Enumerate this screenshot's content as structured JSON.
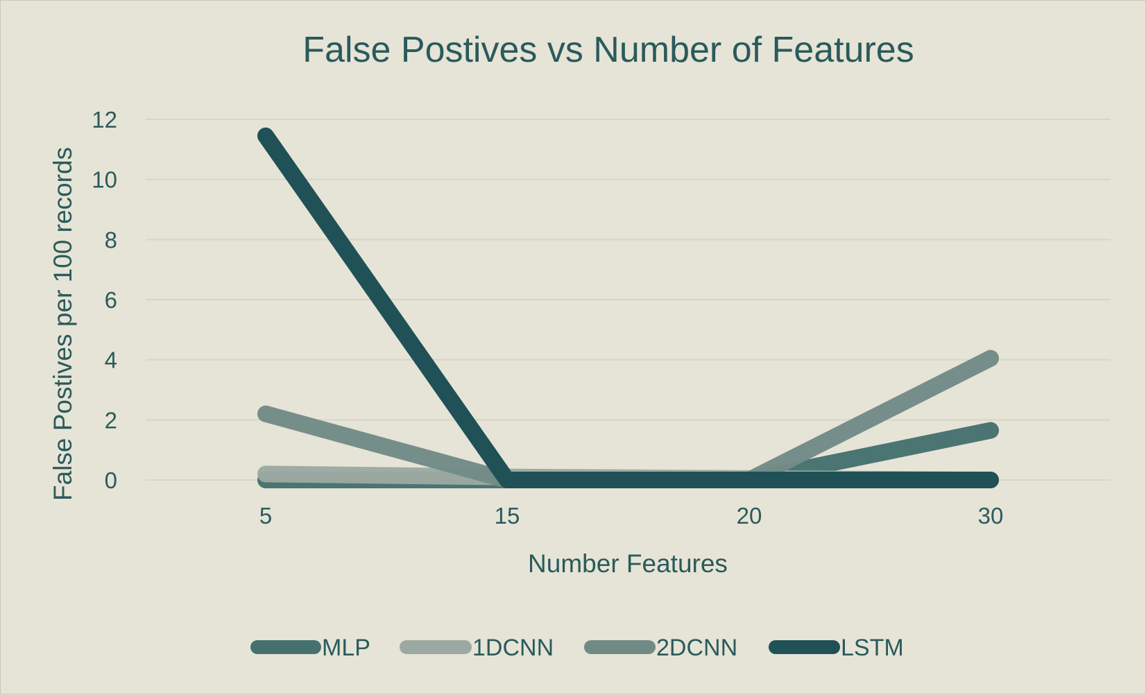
{
  "chart_data": {
    "type": "line",
    "title": "False Postives vs Number of Features",
    "xlabel": "Number Features",
    "ylabel": "False Postives per 100 records",
    "categories": [
      "5",
      "15",
      "20",
      "30"
    ],
    "ylim": [
      0,
      12
    ],
    "yticks": [
      "0",
      "2",
      "4",
      "6",
      "8",
      "10",
      "12"
    ],
    "grid": true,
    "legend_position": "bottom",
    "series": [
      {
        "name": "MLP",
        "values": [
          0,
          0,
          0,
          1.65
        ],
        "color": "#44706d"
      },
      {
        "name": "1DCNN",
        "values": [
          0.2,
          0.1,
          0.05,
          0
        ],
        "color": "#9ca9a2"
      },
      {
        "name": "2DCNN",
        "values": [
          2.2,
          0,
          0,
          4.05
        ],
        "color": "#718a86"
      },
      {
        "name": "LSTM",
        "values": [
          11.45,
          0,
          0,
          0
        ],
        "color": "#1f5157"
      }
    ]
  }
}
